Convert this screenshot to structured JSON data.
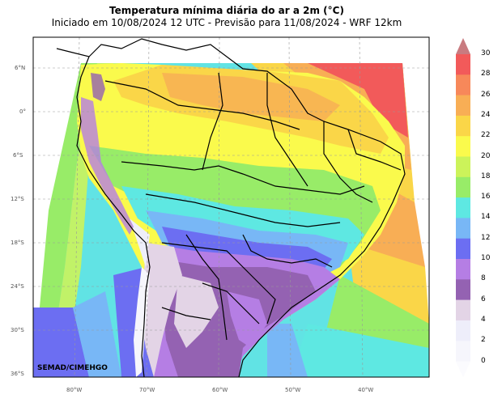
{
  "header": {
    "title": "Temperatura mínima diária do ar a 2m (°C)",
    "subtitle": "Iniciado em 10/08/2024 12 UTC - Previsão para 11/08/2024 - WRF 12km"
  },
  "map": {
    "lat_labels": [
      "6°N",
      "0°",
      "6°S",
      "12°S",
      "18°S",
      "24°S",
      "30°S",
      "36°S"
    ],
    "lon_labels": [
      "80°W",
      "70°W",
      "60°W",
      "50°W",
      "40°W"
    ],
    "credit": "SEMAD/CIMEHGO"
  },
  "colorbar": {
    "labels": [
      "30",
      "28",
      "26",
      "24",
      "22",
      "20",
      "18",
      "16",
      "14",
      "12",
      "10",
      "8",
      "6",
      "4",
      "2",
      "0"
    ],
    "colors": [
      "#c97b80",
      "#f25a5a",
      "#f7885a",
      "#f8ae55",
      "#fad648",
      "#fafa4c",
      "#ccf35a",
      "#98ec68",
      "#5ee8e2",
      "#78b7f6",
      "#6c6ef2",
      "#b57ee4",
      "#9462b2",
      "#e3d4e6",
      "#eeeefa",
      "#f6f6fc"
    ]
  }
}
